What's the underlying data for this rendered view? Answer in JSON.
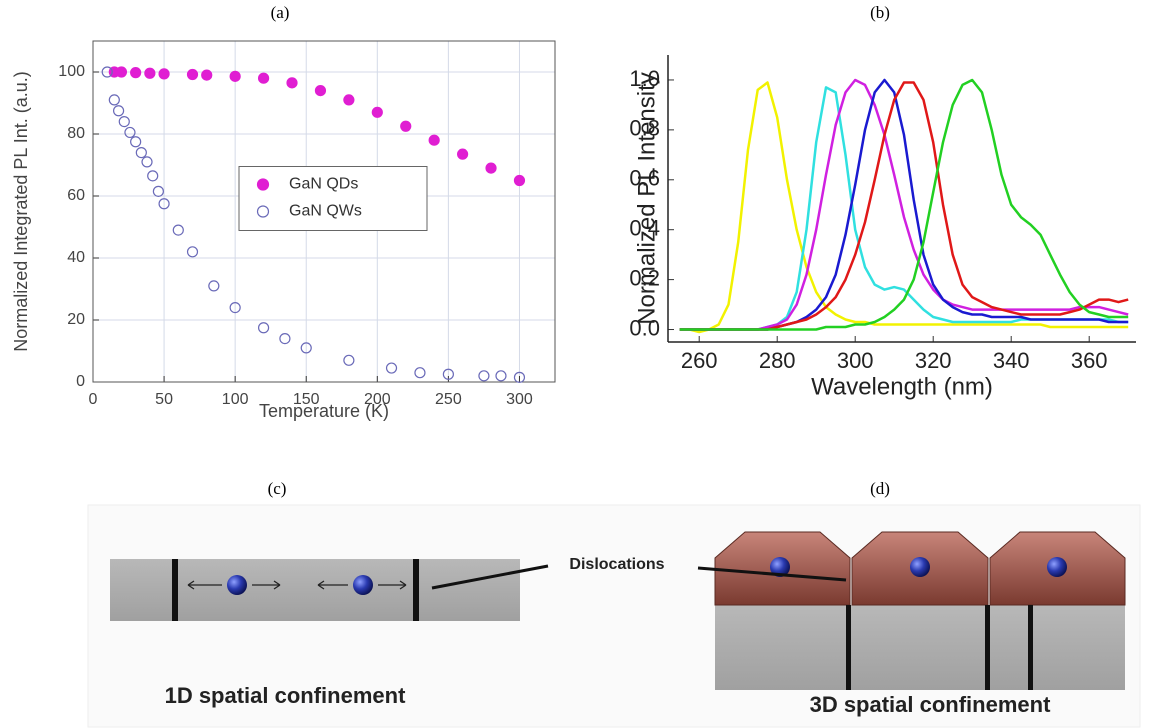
{
  "chart_data": [
    {
      "type": "scatter",
      "title": "(a)",
      "x_label": "Temperature (K)",
      "y_label": "Normalized Integrated PL Int. (a.u.)",
      "xlim": [
        0,
        325
      ],
      "ylim": [
        0,
        110
      ],
      "xticks": [
        0,
        50,
        100,
        150,
        200,
        250,
        300
      ],
      "yticks": [
        0,
        20,
        40,
        60,
        80,
        100
      ],
      "grid": true,
      "frame": true,
      "legend": "center",
      "series": [
        {
          "name": "GaN QDs",
          "color": "#e01ed2",
          "marker": "filled",
          "x": [
            15,
            20,
            30,
            40,
            50,
            70,
            80,
            100,
            120,
            140,
            160,
            180,
            200,
            220,
            240,
            260,
            280,
            300
          ],
          "values": [
            100,
            100,
            99.8,
            99.6,
            99.4,
            99.2,
            99,
            98.6,
            98,
            96.5,
            94,
            91,
            87,
            82.5,
            78,
            73.5,
            69,
            65
          ]
        },
        {
          "name": "GaN QWs",
          "color": "#6a6ab8",
          "marker": "open",
          "x": [
            10,
            15,
            18,
            22,
            26,
            30,
            34,
            38,
            42,
            46,
            50,
            60,
            70,
            85,
            100,
            120,
            135,
            150,
            180,
            210,
            230,
            250,
            275,
            287,
            300
          ],
          "values": [
            100,
            91,
            87.5,
            84,
            80.5,
            77.5,
            74,
            71,
            66.5,
            61.5,
            57.5,
            49,
            42,
            31,
            24,
            17.5,
            14,
            11,
            7,
            4.5,
            3,
            2.5,
            2,
            2,
            1.5
          ]
        }
      ]
    },
    {
      "type": "line",
      "title": "(b)",
      "x_label": "Wavelength (nm)",
      "y_label": "Normalized PL Intensity",
      "xlim": [
        252,
        372
      ],
      "ylim": [
        -0.05,
        1.1
      ],
      "xticks": [
        260,
        280,
        300,
        320,
        340,
        360
      ],
      "yticks": [
        {
          "value": 0,
          "label": "0.0"
        },
        0.2,
        0.4,
        0.6,
        0.8,
        {
          "value": 1,
          "label": "1.0"
        }
      ],
      "grid": false,
      "frame": false,
      "x": [
        255,
        257.5,
        260,
        262.5,
        265,
        267.5,
        270,
        272.5,
        275,
        277.5,
        280,
        282.5,
        285,
        287.5,
        290,
        292.5,
        295,
        297.5,
        300,
        302.5,
        305,
        307.5,
        310,
        312.5,
        315,
        317.5,
        320,
        322.5,
        325,
        327.5,
        330,
        332.5,
        335,
        337.5,
        340,
        342.5,
        345,
        347.5,
        350,
        352.5,
        355,
        357.5,
        360,
        362.5,
        365,
        367.5,
        370
      ],
      "series": [
        {
          "color": "#f2f200",
          "values": [
            0,
            0,
            -0.01,
            0,
            0.02,
            0.1,
            0.35,
            0.72,
            0.96,
            0.99,
            0.85,
            0.6,
            0.4,
            0.25,
            0.15,
            0.09,
            0.06,
            0.04,
            0.03,
            0.03,
            0.02,
            0.02,
            0.02,
            0.02,
            0.02,
            0.02,
            0.02,
            0.02,
            0.02,
            0.02,
            0.02,
            0.02,
            0.02,
            0.02,
            0.02,
            0.02,
            0.02,
            0.02,
            0.01,
            0.01,
            0.01,
            0.01,
            0.01,
            0.01,
            0.01,
            0.01,
            0.01
          ]
        },
        {
          "color": "#30e0e0",
          "values": [
            0,
            0,
            0,
            0,
            0,
            0,
            0,
            0,
            0,
            0.01,
            0.02,
            0.05,
            0.15,
            0.4,
            0.75,
            0.97,
            0.95,
            0.7,
            0.4,
            0.25,
            0.18,
            0.16,
            0.17,
            0.16,
            0.12,
            0.08,
            0.05,
            0.04,
            0.03,
            0.03,
            0.03,
            0.03,
            0.03,
            0.03,
            0.03,
            0.04,
            0.04,
            0.04,
            0.04,
            0.04,
            0.04,
            0.04,
            0.04,
            0.04,
            0.04,
            0.03,
            0.03
          ]
        },
        {
          "color": "#d020e0",
          "values": [
            0,
            0,
            0,
            0,
            0,
            0,
            0,
            0,
            0,
            0.01,
            0.02,
            0.04,
            0.1,
            0.22,
            0.4,
            0.62,
            0.82,
            0.95,
            1,
            0.98,
            0.9,
            0.78,
            0.62,
            0.45,
            0.32,
            0.22,
            0.16,
            0.12,
            0.1,
            0.09,
            0.08,
            0.08,
            0.08,
            0.08,
            0.08,
            0.08,
            0.08,
            0.08,
            0.08,
            0.08,
            0.08,
            0.09,
            0.09,
            0.09,
            0.08,
            0.07,
            0.06
          ]
        },
        {
          "color": "#1a1ad0",
          "values": [
            0,
            0,
            0,
            0,
            0,
            0,
            0,
            0,
            0,
            0,
            0.01,
            0.02,
            0.03,
            0.05,
            0.08,
            0.13,
            0.22,
            0.38,
            0.58,
            0.8,
            0.95,
            1,
            0.95,
            0.78,
            0.52,
            0.3,
            0.18,
            0.12,
            0.09,
            0.07,
            0.06,
            0.06,
            0.05,
            0.05,
            0.05,
            0.05,
            0.04,
            0.04,
            0.04,
            0.04,
            0.04,
            0.04,
            0.04,
            0.04,
            0.03,
            0.03,
            0.03
          ]
        },
        {
          "color": "#e01818",
          "values": [
            0,
            0,
            0,
            0,
            0,
            0,
            0,
            0,
            0,
            0,
            0.01,
            0.02,
            0.03,
            0.04,
            0.06,
            0.09,
            0.13,
            0.2,
            0.3,
            0.43,
            0.6,
            0.78,
            0.92,
            0.99,
            0.99,
            0.92,
            0.75,
            0.5,
            0.3,
            0.18,
            0.13,
            0.11,
            0.09,
            0.08,
            0.07,
            0.06,
            0.06,
            0.06,
            0.06,
            0.06,
            0.07,
            0.08,
            0.1,
            0.12,
            0.12,
            0.11,
            0.12
          ]
        },
        {
          "color": "#22d022",
          "values": [
            0,
            0,
            0,
            0,
            0,
            0,
            0,
            0,
            0,
            0,
            0,
            0,
            0,
            0,
            0,
            0.01,
            0.01,
            0.01,
            0.02,
            0.02,
            0.03,
            0.05,
            0.08,
            0.12,
            0.2,
            0.35,
            0.55,
            0.75,
            0.9,
            0.98,
            1,
            0.95,
            0.8,
            0.62,
            0.5,
            0.45,
            0.42,
            0.38,
            0.3,
            0.22,
            0.15,
            0.1,
            0.07,
            0.06,
            0.05,
            0.05,
            0.05
          ]
        }
      ]
    }
  ],
  "diagram": {
    "panel_c": "(c)",
    "panel_d": "(d)",
    "callout": "Dislocations",
    "caption_1d": "1D spatial confinement",
    "caption_3d": "3D spatial confinement"
  }
}
